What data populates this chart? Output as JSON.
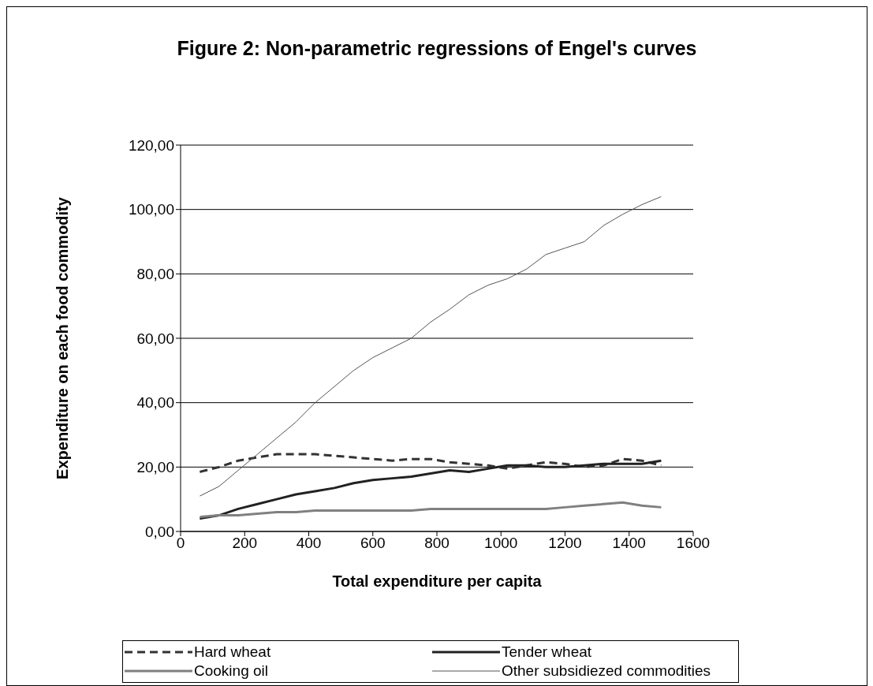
{
  "chart_data": {
    "type": "line",
    "title": "Figure 2: Non-parametric regressions of Engel's curves",
    "xlabel": "Total expenditure per capita",
    "ylabel": "Expenditure on each food commodity",
    "x": [
      60,
      120,
      180,
      240,
      300,
      360,
      420,
      480,
      540,
      600,
      660,
      720,
      780,
      840,
      900,
      960,
      1020,
      1080,
      1140,
      1200,
      1260,
      1320,
      1380,
      1440,
      1500
    ],
    "series": [
      {
        "name": "Hard wheat",
        "color": "#333333",
        "line_style": "dashed",
        "values": [
          18.5,
          20,
          22,
          23,
          24,
          24,
          24,
          23.5,
          23,
          22.5,
          22,
          22.5,
          22.5,
          21.5,
          21,
          20.5,
          19.5,
          20.5,
          21.5,
          21,
          20,
          20.5,
          22.5,
          22,
          20.5
        ]
      },
      {
        "name": "Tender wheat",
        "color": "#222222",
        "line_style": "solid",
        "values": [
          4,
          5,
          7,
          8.5,
          10,
          11.5,
          12.5,
          13.5,
          15,
          16,
          16.5,
          17,
          18,
          19,
          18.5,
          19.5,
          20.5,
          20.5,
          20,
          20,
          20.5,
          21,
          21,
          21,
          22
        ]
      },
      {
        "name": "Cooking oil",
        "color": "#808080",
        "line_style": "solid",
        "values": [
          4.5,
          5,
          5,
          5.5,
          6,
          6,
          6.5,
          6.5,
          6.5,
          6.5,
          6.5,
          6.5,
          7,
          7,
          7,
          7,
          7,
          7,
          7,
          7.5,
          8,
          8.5,
          9,
          8,
          7.5
        ]
      },
      {
        "name": "Other subsidiezed commodities",
        "color": "#555555",
        "line_style": "solid",
        "values": [
          11,
          14,
          19,
          24,
          29,
          34,
          40,
          45,
          50,
          54,
          57,
          60,
          65,
          69,
          73.5,
          76.5,
          78.5,
          81.5,
          86,
          88,
          90,
          95,
          98.5,
          101.5,
          104
        ]
      }
    ],
    "xlim": [
      0,
      1600
    ],
    "xticks": [
      0,
      200,
      400,
      600,
      800,
      1000,
      1200,
      1400,
      1600
    ],
    "ylim": [
      0,
      120
    ],
    "yticks": [
      {
        "value": 0,
        "label": "0,00"
      },
      {
        "value": 20,
        "label": "20,00"
      },
      {
        "value": 40,
        "label": "40,00"
      },
      {
        "value": 60,
        "label": "60,00"
      },
      {
        "value": 80,
        "label": "80,00"
      },
      {
        "value": 100,
        "label": "100,00"
      },
      {
        "value": 120,
        "label": "120,00"
      }
    ],
    "grid": "y",
    "legend": "bottom",
    "marker": "none"
  }
}
